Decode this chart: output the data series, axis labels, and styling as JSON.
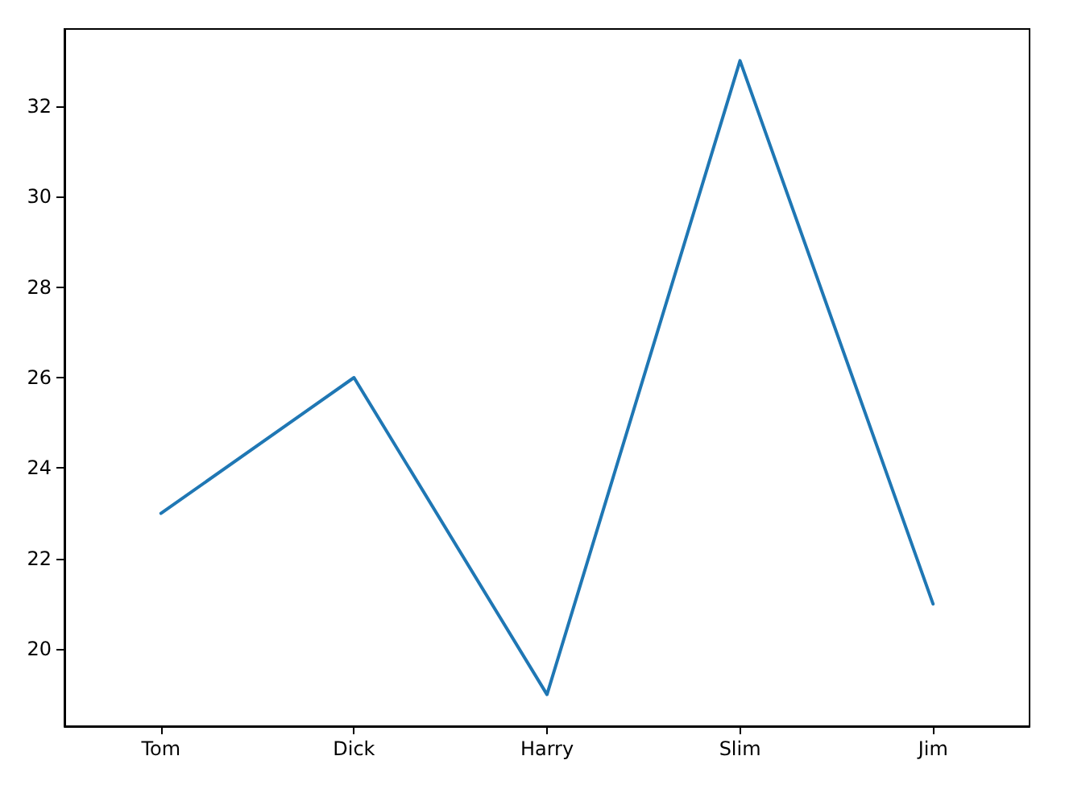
{
  "chart_data": {
    "type": "line",
    "categories": [
      "Tom",
      "Dick",
      "Harry",
      "Slim",
      "Jim"
    ],
    "series": [
      {
        "color": "#1f77b4",
        "values": [
          23,
          26,
          19,
          33,
          21
        ]
      }
    ],
    "ylim": [
      18.3,
      33.7
    ],
    "yticks": [
      20,
      22,
      24,
      26,
      28,
      30,
      32
    ],
    "marker": "none",
    "line_style": "solid"
  }
}
